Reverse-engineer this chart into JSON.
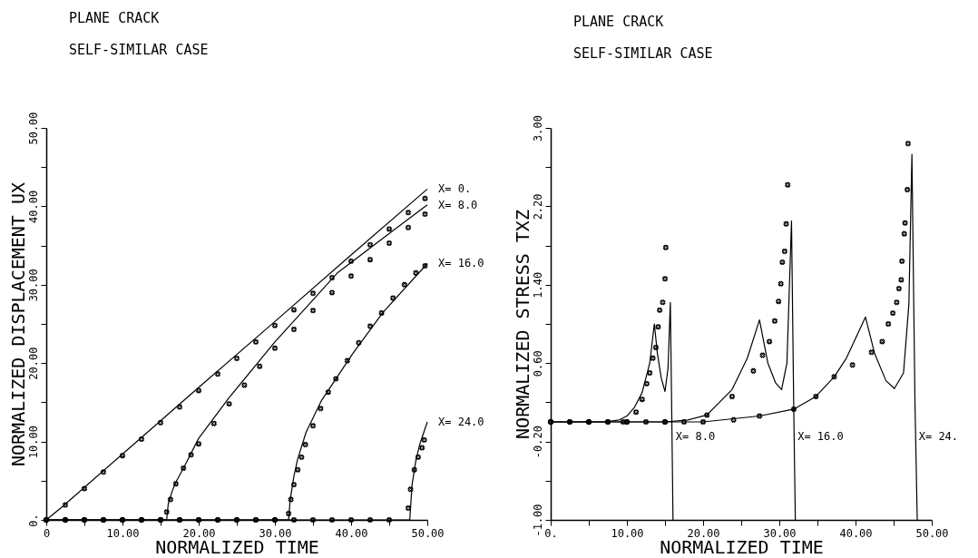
{
  "chart_data": [
    {
      "type": "line",
      "title": "PLANE CRACK",
      "subtitle": "SELF-SIMILAR CASE",
      "xlabel": "NORMALIZED TIME",
      "ylabel": "NORMALIZED DISPLACEMENT UX",
      "xlim": [
        0,
        50
      ],
      "ylim": [
        0,
        50
      ],
      "xticks": [
        {
          "value": 0,
          "label": "0"
        },
        {
          "value": 5,
          "label": null
        },
        {
          "value": 10,
          "label": "10.00"
        },
        {
          "value": 15,
          "label": null
        },
        {
          "value": 20,
          "label": "20.00"
        },
        {
          "value": 25,
          "label": null
        },
        {
          "value": 30,
          "label": "30.00"
        },
        {
          "value": 35,
          "label": null
        },
        {
          "value": 40,
          "label": "40.00"
        },
        {
          "value": 45,
          "label": null
        },
        {
          "value": 50,
          "label": "50.00"
        }
      ],
      "yticks": [
        {
          "value": 0,
          "label": "0."
        },
        {
          "value": 5,
          "label": null
        },
        {
          "value": 10,
          "label": "10.00"
        },
        {
          "value": 15,
          "label": null
        },
        {
          "value": 20,
          "label": "20.00"
        },
        {
          "value": 25,
          "label": null
        },
        {
          "value": 30,
          "label": "30.00"
        },
        {
          "value": 35,
          "label": null
        },
        {
          "value": 40,
          "label": "40.00"
        },
        {
          "value": 45,
          "label": null
        },
        {
          "value": 50,
          "label": "50.00"
        }
      ],
      "line_style": "solid",
      "series": [
        {
          "name": "X= 0.",
          "color": "#000000",
          "x": [
            0,
            2,
            10,
            20,
            30,
            40,
            50
          ],
          "values": [
            0,
            1.6,
            8.4,
            16.9,
            25.3,
            33.8,
            42.2
          ]
        },
        {
          "type": "scatter",
          "marker": "cross",
          "color": "#000000",
          "x": [
            0,
            2.5,
            5,
            7.5,
            10,
            12.5,
            15,
            17.5,
            20,
            22.5,
            25,
            27.5,
            30,
            32.5,
            35,
            37.5,
            40,
            42.5,
            45,
            47.5,
            49.7
          ],
          "values": [
            0,
            1.9,
            4.0,
            6.1,
            8.2,
            10.3,
            12.4,
            14.4,
            16.5,
            18.6,
            20.6,
            22.7,
            24.8,
            26.8,
            28.9,
            30.9,
            33.0,
            35.1,
            37.1,
            39.2,
            41.0
          ]
        },
        {
          "name": "X= 8.0",
          "color": "#000000",
          "x": [
            0,
            15.8,
            16,
            16.5,
            17,
            18,
            20,
            24,
            30,
            38.2,
            44,
            50
          ],
          "values": [
            0,
            0,
            2.0,
            3.6,
            4.8,
            6.6,
            10.4,
            15.6,
            22.7,
            31.5,
            35.8,
            40.2
          ]
        },
        {
          "type": "scatter",
          "marker": "cross",
          "color": "#000000",
          "x": [
            0,
            2.5,
            5,
            7.5,
            10,
            12.5,
            15,
            15.8,
            16.3,
            17,
            18,
            19,
            20,
            22,
            24,
            26,
            28,
            30,
            32.5,
            35,
            37.5,
            40,
            42.5,
            45,
            47.5,
            49.7
          ],
          "values": [
            0,
            0,
            0,
            0,
            0,
            0,
            0,
            1.0,
            2.6,
            4.6,
            6.6,
            8.3,
            9.7,
            12.3,
            14.8,
            17.2,
            19.6,
            21.9,
            24.3,
            26.7,
            29.0,
            31.1,
            33.2,
            35.3,
            37.3,
            39.0
          ]
        },
        {
          "name": "X= 16.0",
          "color": "#000000",
          "x": [
            0,
            31.8,
            32,
            32.5,
            33,
            34.1,
            36.1,
            40.2,
            44.2,
            50
          ],
          "values": [
            0,
            0,
            2.5,
            5.6,
            7.8,
            11.2,
            15.2,
            21.2,
            26.5,
            32.7
          ]
        },
        {
          "type": "scatter",
          "marker": "cross",
          "color": "#000000",
          "x": [
            0,
            2.5,
            5,
            7.5,
            10,
            12.5,
            15,
            17.5,
            20,
            22.5,
            25,
            27.5,
            30,
            31.8,
            32.1,
            32.5,
            33,
            33.5,
            34,
            35,
            36,
            37,
            38,
            39.5,
            41,
            42.5,
            44,
            45.5,
            47,
            48.5,
            49.7
          ],
          "values": [
            0,
            0,
            0,
            0,
            0,
            0,
            0,
            0,
            0,
            0,
            0,
            0,
            0,
            0.8,
            2.6,
            4.5,
            6.4,
            8.0,
            9.6,
            12.0,
            14.2,
            16.3,
            18.0,
            20.3,
            22.6,
            24.7,
            26.4,
            28.3,
            30.0,
            31.5,
            32.4
          ]
        },
        {
          "name": "X= 24.0",
          "color": "#000000",
          "x": [
            0,
            47.7,
            48,
            48.5,
            49,
            50
          ],
          "values": [
            0,
            0,
            4.5,
            7.6,
            9.6,
            12.5
          ]
        },
        {
          "type": "scatter",
          "marker": "cross",
          "color": "#000000",
          "x": [
            0,
            2.5,
            5,
            7.5,
            10,
            12.5,
            15,
            17.5,
            20,
            22.5,
            25,
            27.5,
            30,
            32.5,
            35,
            37.5,
            40,
            42.5,
            45,
            47.5,
            47.8,
            48.3,
            48.8,
            49.3,
            49.6
          ],
          "values": [
            0,
            0,
            0,
            0,
            0,
            0,
            0,
            0,
            0,
            0,
            0,
            0,
            0,
            0,
            0,
            0,
            0,
            0,
            0,
            1.5,
            3.9,
            6.4,
            8.0,
            9.2,
            10.2
          ]
        }
      ]
    },
    {
      "type": "line",
      "title": "PLANE CRACK",
      "subtitle": "SELF-SIMILAR CASE",
      "xlabel": "NORMALIZED TIME",
      "ylabel": "NORMALIZED STRESS TXZ",
      "xlim": [
        0,
        50
      ],
      "ylim": [
        -1,
        3
      ],
      "xticks": [
        {
          "value": 0,
          "label": "0."
        },
        {
          "value": 5,
          "label": null
        },
        {
          "value": 10,
          "label": "10.00"
        },
        {
          "value": 15,
          "label": null
        },
        {
          "value": 20,
          "label": "20.00"
        },
        {
          "value": 25,
          "label": null
        },
        {
          "value": 30,
          "label": "30.00"
        },
        {
          "value": 35,
          "label": null
        },
        {
          "value": 40,
          "label": "40.00"
        },
        {
          "value": 45,
          "label": null
        },
        {
          "value": 50,
          "label": "50.00"
        }
      ],
      "yticks": [
        {
          "value": -1,
          "label": "-1.00"
        },
        {
          "value": -0.6,
          "label": null
        },
        {
          "value": -0.2,
          "label": "-0.20"
        },
        {
          "value": 0.2,
          "label": null
        },
        {
          "value": 0.6,
          "label": "0.60"
        },
        {
          "value": 1.0,
          "label": null
        },
        {
          "value": 1.4,
          "label": "1.40"
        },
        {
          "value": 1.8,
          "label": null
        },
        {
          "value": 2.2,
          "label": "2.20"
        },
        {
          "value": 2.6,
          "label": null
        },
        {
          "value": 3,
          "label": "3.00"
        }
      ],
      "line_style": "solid",
      "annotations": [
        {
          "text": "X= 8.0",
          "x": 16.4,
          "y": -0.15
        },
        {
          "text": "X= 16.0",
          "x": 32.4,
          "y": -0.15
        },
        {
          "text": "X= 24.",
          "x": 48.3,
          "y": -0.15
        }
      ],
      "series": [
        {
          "color": "#000000",
          "x": [
            0,
            7,
            9,
            10,
            11,
            12,
            13,
            13.6,
            14,
            14.5,
            15,
            15.4,
            15.7,
            15.9,
            16.05
          ],
          "values": [
            0,
            0,
            0.02,
            0.06,
            0.15,
            0.3,
            0.6,
            1.0,
            0.7,
            0.45,
            0.31,
            0.55,
            1.22,
            0.0,
            -1
          ]
        },
        {
          "type": "scatter",
          "marker": "cross",
          "color": "#000000",
          "x": [
            0,
            2.5,
            5,
            7.5,
            9.5,
            11.2,
            12.0,
            12.6,
            13.0,
            13.4,
            13.8,
            14.1,
            14.3,
            14.7,
            15.0,
            15.1
          ],
          "values": [
            0,
            0,
            0,
            0,
            0,
            0.1,
            0.23,
            0.39,
            0.5,
            0.65,
            0.76,
            0.97,
            1.14,
            1.22,
            1.46,
            1.78
          ]
        },
        {
          "color": "#000000",
          "x": [
            0,
            15,
            18,
            20.5,
            23.8,
            25.8,
            27.4,
            28.5,
            29.5,
            30.3,
            31.0,
            31.6,
            31.9,
            32.1
          ],
          "values": [
            0,
            0,
            0.02,
            0.07,
            0.33,
            0.65,
            1.04,
            0.6,
            0.4,
            0.33,
            0.6,
            2.05,
            0.1,
            -1
          ]
        },
        {
          "type": "scatter",
          "marker": "cross",
          "color": "#000000",
          "x": [
            0,
            2.5,
            5,
            7.5,
            10,
            12.5,
            15,
            17.5,
            20.5,
            23.8,
            26.6,
            27.8,
            28.7,
            29.4,
            29.9,
            30.2,
            30.4,
            30.7,
            30.9,
            31.1
          ],
          "values": [
            0,
            0,
            0,
            0,
            0,
            0,
            0,
            0,
            0.07,
            0.26,
            0.52,
            0.68,
            0.82,
            1.03,
            1.23,
            1.41,
            1.63,
            1.74,
            2.02,
            2.42
          ]
        },
        {
          "color": "#000000",
          "x": [
            0,
            20,
            27.4,
            31.9,
            34.8,
            37.2,
            38.8,
            41.3,
            42.5,
            44,
            45.1,
            46.3,
            47.0,
            47.4,
            47.8,
            48.1
          ],
          "values": [
            0,
            0,
            0.06,
            0.13,
            0.26,
            0.46,
            0.65,
            1.07,
            0.7,
            0.42,
            0.34,
            0.5,
            1.2,
            2.73,
            0.2,
            -1
          ]
        },
        {
          "type": "scatter",
          "marker": "cross",
          "color": "#000000",
          "x": [
            0,
            5,
            10,
            15,
            20,
            24,
            27.4,
            31.9,
            34.8,
            37.2,
            39.6,
            42.1,
            43.5,
            44.3,
            44.9,
            45.4,
            45.7,
            46.0,
            46.1,
            46.4,
            46.5,
            46.8,
            46.9
          ],
          "values": [
            0,
            0,
            0,
            0,
            0,
            0.02,
            0.06,
            0.13,
            0.26,
            0.46,
            0.58,
            0.71,
            0.82,
            1.0,
            1.11,
            1.22,
            1.36,
            1.45,
            1.64,
            1.92,
            2.03,
            2.37,
            2.84
          ]
        }
      ]
    }
  ]
}
